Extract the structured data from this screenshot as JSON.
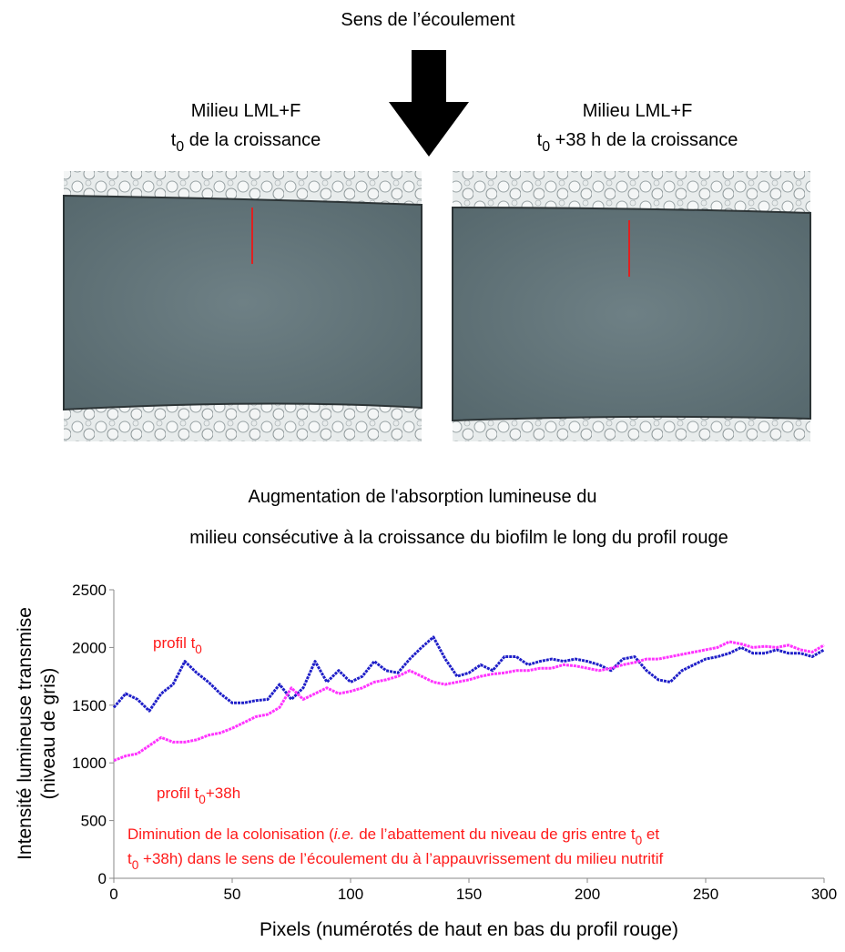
{
  "header": {
    "flow_label": "Sens de l’écoulement"
  },
  "panels": [
    {
      "medium": "Milieu LML+F",
      "time": [
        {
          "text": "t",
          "style": "normal"
        },
        {
          "text": "0",
          "style": "sub"
        },
        {
          "text": " de la croissance",
          "style": "normal"
        }
      ]
    },
    {
      "medium": "Milieu LML+F",
      "time": [
        {
          "text": "t",
          "style": "normal"
        },
        {
          "text": "0",
          "style": "sub"
        },
        {
          "text": " +38 h de la croissance",
          "style": "normal"
        }
      ]
    }
  ],
  "chart_data": {
    "type": "line",
    "title": [
      "Augmentation de l'absorption lumineuse du",
      "milieu consécutive à la croissance du biofilm le long du profil rouge"
    ],
    "y_label": [
      "Intensité lumineuse transmise",
      "(niveau de gris)"
    ],
    "x_label": "Pixels (numérotés de haut en bas du profil rouge)",
    "x": [
      0,
      5,
      10,
      15,
      20,
      25,
      30,
      35,
      40,
      45,
      50,
      55,
      60,
      65,
      70,
      75,
      80,
      85,
      90,
      95,
      100,
      105,
      110,
      115,
      120,
      125,
      130,
      135,
      140,
      145,
      150,
      155,
      160,
      165,
      170,
      175,
      180,
      185,
      190,
      195,
      200,
      205,
      210,
      215,
      220,
      225,
      230,
      235,
      240,
      245,
      250,
      255,
      260,
      265,
      270,
      275,
      280,
      285,
      290,
      295,
      300
    ],
    "series": [
      {
        "color": "#1f1fc8",
        "values": [
          1480,
          1600,
          1550,
          1450,
          1600,
          1680,
          1880,
          1780,
          1700,
          1600,
          1520,
          1520,
          1540,
          1550,
          1680,
          1550,
          1650,
          1880,
          1700,
          1800,
          1700,
          1750,
          1880,
          1800,
          1780,
          1900,
          2000,
          2090,
          1900,
          1750,
          1780,
          1850,
          1800,
          1920,
          1920,
          1850,
          1880,
          1900,
          1880,
          1900,
          1880,
          1850,
          1800,
          1900,
          1920,
          1800,
          1720,
          1700,
          1800,
          1850,
          1900,
          1920,
          1950,
          2000,
          1950,
          1950,
          1980,
          1950,
          1950,
          1920,
          1980
        ]
      },
      {
        "color": "#ff33ff",
        "values": [
          1020,
          1060,
          1080,
          1150,
          1220,
          1180,
          1180,
          1200,
          1240,
          1260,
          1300,
          1350,
          1400,
          1420,
          1480,
          1650,
          1550,
          1600,
          1650,
          1600,
          1620,
          1650,
          1700,
          1720,
          1750,
          1800,
          1750,
          1700,
          1680,
          1700,
          1720,
          1750,
          1770,
          1780,
          1800,
          1800,
          1820,
          1820,
          1850,
          1840,
          1820,
          1800,
          1820,
          1850,
          1870,
          1900,
          1900,
          1920,
          1940,
          1960,
          1980,
          2000,
          2050,
          2030,
          2000,
          2010,
          2000,
          2020,
          1980,
          1960,
          2020
        ]
      }
    ],
    "xlim": [
      0,
      300
    ],
    "xticks": [
      0,
      50,
      100,
      150,
      200,
      250,
      300
    ],
    "ylim": [
      0,
      2500
    ],
    "yticks": [
      0,
      500,
      1000,
      1500,
      2000,
      2500
    ],
    "annotation_color": "#ff1a1a",
    "annotations": [
      [
        {
          "text": "profil t",
          "style": "normal"
        },
        {
          "text": "0",
          "style": "sub"
        }
      ],
      [
        {
          "text": "profil t",
          "style": "normal"
        },
        {
          "text": "0",
          "style": "sub"
        },
        {
          "text": "+38h",
          "style": "normal"
        }
      ]
    ],
    "note": [
      [
        {
          "text": "Diminution de la colonisation (",
          "style": "normal"
        },
        {
          "text": "i.e.",
          "style": "italic"
        },
        {
          "text": " de l’abattement du niveau de gris entre t",
          "style": "normal"
        },
        {
          "text": "0",
          "style": "sub"
        },
        {
          "text": " et",
          "style": "normal"
        }
      ],
      [
        {
          "text": "t",
          "style": "normal"
        },
        {
          "text": "0",
          "style": "sub"
        },
        {
          "text": " +38h) dans le sens de l’écoulement du à l’appauvrissement du milieu nutritif",
          "style": "normal"
        }
      ]
    ]
  }
}
